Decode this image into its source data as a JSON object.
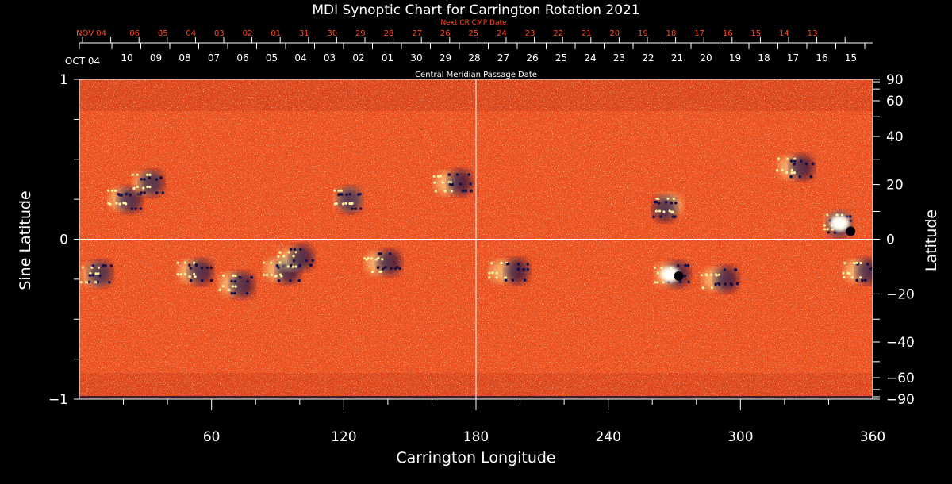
{
  "title": "MDI Synoptic Chart for Carrington Rotation 2021",
  "next_cr_label": "Next CR CMP Date",
  "cmp_label": "Central Meridian Passage Date",
  "xlabel": "Carrington Longitude",
  "ylabel_left": "Sine Latitude",
  "ylabel_right": "Latitude",
  "colors": {
    "background": "#000000",
    "text": "#ffffff",
    "next_cr_text": "#ff4a22",
    "field_base": "#ee4f1c",
    "positive_polarity": "#fff2a0",
    "negative_polarity": "#1a0f45",
    "axis": "#ffffff"
  },
  "next_cr_dates": [
    "NOV 04",
    "06",
    "05",
    "04",
    "03",
    "02",
    "01",
    "31",
    "30",
    "29",
    "28",
    "27",
    "26",
    "25",
    "24",
    "23",
    "22",
    "21",
    "20",
    "19",
    "18",
    "17",
    "16",
    "15",
    "14",
    "13"
  ],
  "cmp_dates": [
    "OCT 04",
    "10",
    "09",
    "08",
    "07",
    "06",
    "05",
    "04",
    "03",
    "02",
    "01",
    "30",
    "29",
    "28",
    "27",
    "26",
    "25",
    "24",
    "23",
    "22",
    "21",
    "20",
    "19",
    "18",
    "17",
    "16",
    "15"
  ],
  "chart_data": {
    "type": "heatmap",
    "title": "MDI Synoptic Chart for Carrington Rotation 2021",
    "xlabel": "Carrington Longitude",
    "ylabel": "Sine Latitude",
    "ylabel_right": "Latitude",
    "xlim": [
      0,
      360
    ],
    "ylim": [
      -1,
      1
    ],
    "x_ticks": [
      60,
      120,
      180,
      240,
      300,
      360
    ],
    "y_ticks_left": [
      {
        "value": 1,
        "label": "1"
      },
      {
        "value": 0,
        "label": "0"
      },
      {
        "value": -1,
        "label": "−1"
      }
    ],
    "y_ticks_right_latitude": [
      90,
      60,
      40,
      20,
      0,
      -20,
      -40,
      -60,
      -90
    ],
    "y_ticks_right_labels": [
      "90",
      "60",
      "40",
      "20",
      "0",
      "−20",
      "−40",
      "−60",
      "−90"
    ],
    "reference_lines": {
      "equator_sine_latitude": 0,
      "central_longitude": 180
    },
    "active_regions": [
      {
        "lon": 7,
        "sinlat": -0.22,
        "pos": [
          0,
          0
        ],
        "neg": [
          1,
          -1
        ]
      },
      {
        "lon": 20,
        "sinlat": 0.25,
        "pos": [
          -2,
          0
        ],
        "neg": [
          2,
          1
        ]
      },
      {
        "lon": 30,
        "sinlat": 0.35,
        "pos": [
          1,
          0
        ],
        "neg": [
          2,
          0
        ]
      },
      {
        "lon": 50,
        "sinlat": -0.2,
        "pos": [
          2,
          0
        ],
        "neg": [
          8,
          1
        ]
      },
      {
        "lon": 70,
        "sinlat": -0.28,
        "pos": [
          -2,
          0
        ],
        "neg": [
          5,
          1
        ]
      },
      {
        "lon": 92,
        "sinlat": -0.2,
        "pos": [
          -6,
          -2
        ],
        "neg": [
          2,
          0
        ]
      },
      {
        "lon": 98,
        "sinlat": -0.12,
        "pos": [
          -4,
          1
        ],
        "neg": [
          2,
          -1
        ]
      },
      {
        "lon": 122,
        "sinlat": 0.25,
        "pos": [
          0,
          0
        ],
        "neg": [
          -4,
          1
        ]
      },
      {
        "lon": 137,
        "sinlat": -0.15,
        "pos": [
          -4,
          0
        ],
        "neg": [
          4,
          -1
        ]
      },
      {
        "lon": 170,
        "sinlat": 0.35,
        "pos": [
          -8,
          0
        ],
        "neg": [
          2,
          -1
        ]
      },
      {
        "lon": 195,
        "sinlat": -0.2,
        "pos": [
          -8,
          0
        ],
        "neg": [
          4,
          0
        ]
      },
      {
        "lon": 265,
        "sinlat": 0.2,
        "pos": [
          8,
          -3
        ],
        "neg": [
          -4,
          2
        ]
      },
      {
        "lon": 268,
        "sinlat": -0.22,
        "pos": [
          -2,
          0
        ],
        "neg": [
          4,
          0
        ]
      },
      {
        "lon": 290,
        "sinlat": -0.25,
        "pos": [
          -4,
          0
        ],
        "neg": [
          4,
          0
        ]
      },
      {
        "lon": 325,
        "sinlat": 0.45,
        "pos": [
          -6,
          0
        ],
        "neg": [
          2,
          0
        ]
      },
      {
        "lon": 345,
        "sinlat": 0.1,
        "pos": [
          -2,
          0
        ],
        "neg": [
          -6,
          2
        ]
      },
      {
        "lon": 355,
        "sinlat": -0.2,
        "pos": [
          -6,
          0
        ],
        "neg": [
          2,
          0
        ]
      }
    ],
    "strong_spots": [
      {
        "lon": 268,
        "sinlat": -0.22,
        "polarity": "positive"
      },
      {
        "lon": 272,
        "sinlat": -0.23,
        "polarity": "negative"
      },
      {
        "lon": 345,
        "sinlat": 0.1,
        "polarity": "positive"
      },
      {
        "lon": 350,
        "sinlat": 0.05,
        "polarity": "negative"
      }
    ]
  }
}
